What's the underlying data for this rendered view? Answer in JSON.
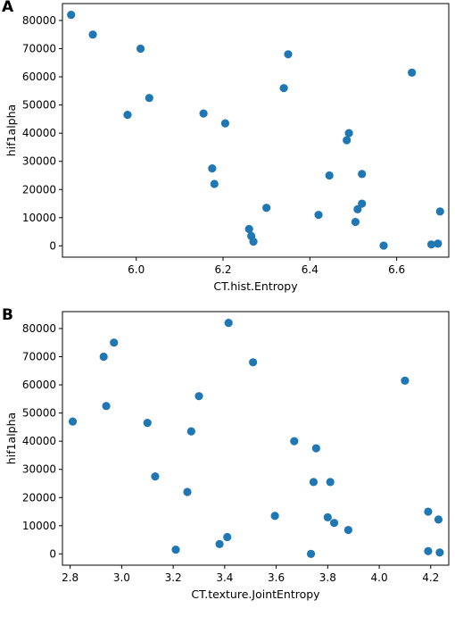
{
  "colors": {
    "point": "#1f77b4",
    "axis": "#000000",
    "background": "#ffffff"
  },
  "chart_data": [
    {
      "panel": "A",
      "type": "scatter",
      "xlabel": "CT.hist.Entropy",
      "ylabel": "hif1alpha",
      "xlim": [
        5.83,
        6.72
      ],
      "ylim": [
        -4000,
        86000
      ],
      "xticks": [
        "6.0",
        "6.2",
        "6.4",
        "6.6"
      ],
      "yticks": [
        "0",
        "10000",
        "20000",
        "30000",
        "40000",
        "50000",
        "60000",
        "70000",
        "80000"
      ],
      "grid": false,
      "points": [
        [
          5.85,
          82000
        ],
        [
          5.9,
          75000
        ],
        [
          6.01,
          70000
        ],
        [
          6.03,
          52500
        ],
        [
          5.98,
          46500
        ],
        [
          6.155,
          47000
        ],
        [
          6.205,
          43500
        ],
        [
          6.175,
          27500
        ],
        [
          6.18,
          22000
        ],
        [
          6.35,
          68000
        ],
        [
          6.34,
          56000
        ],
        [
          6.3,
          13500
        ],
        [
          6.26,
          6000
        ],
        [
          6.265,
          3500
        ],
        [
          6.27,
          1500
        ],
        [
          6.42,
          11000
        ],
        [
          6.445,
          25000
        ],
        [
          6.49,
          40000
        ],
        [
          6.485,
          37500
        ],
        [
          6.52,
          25500
        ],
        [
          6.52,
          15000
        ],
        [
          6.51,
          13000
        ],
        [
          6.505,
          8500
        ],
        [
          6.57,
          100
        ],
        [
          6.635,
          61500
        ],
        [
          6.68,
          500
        ],
        [
          6.695,
          800
        ],
        [
          6.7,
          12200
        ]
      ]
    },
    {
      "panel": "B",
      "type": "scatter",
      "xlabel": "CT.texture.JointEntropy",
      "ylabel": "hif1alpha",
      "xlim": [
        2.77,
        4.27
      ],
      "ylim": [
        -4000,
        86000
      ],
      "xticks": [
        "2.8",
        "3.0",
        "3.2",
        "3.4",
        "3.6",
        "3.8",
        "4.0",
        "4.2"
      ],
      "yticks": [
        "0",
        "10000",
        "20000",
        "30000",
        "40000",
        "50000",
        "60000",
        "70000",
        "80000"
      ],
      "grid": false,
      "points": [
        [
          2.81,
          47000
        ],
        [
          2.93,
          70000
        ],
        [
          2.97,
          75000
        ],
        [
          2.94,
          52500
        ],
        [
          3.1,
          46500
        ],
        [
          3.13,
          27500
        ],
        [
          3.21,
          1500
        ],
        [
          3.255,
          22000
        ],
        [
          3.27,
          43500
        ],
        [
          3.3,
          56000
        ],
        [
          3.38,
          3500
        ],
        [
          3.41,
          6000
        ],
        [
          3.415,
          82000
        ],
        [
          3.51,
          68000
        ],
        [
          3.595,
          13500
        ],
        [
          3.67,
          40000
        ],
        [
          3.735,
          0
        ],
        [
          3.745,
          25500
        ],
        [
          3.755,
          37500
        ],
        [
          3.8,
          13000
        ],
        [
          3.81,
          25500
        ],
        [
          3.825,
          11000
        ],
        [
          3.88,
          8500
        ],
        [
          4.1,
          61500
        ],
        [
          4.19,
          15000
        ],
        [
          4.19,
          1000
        ],
        [
          4.23,
          12200
        ],
        [
          4.235,
          500
        ]
      ]
    }
  ]
}
